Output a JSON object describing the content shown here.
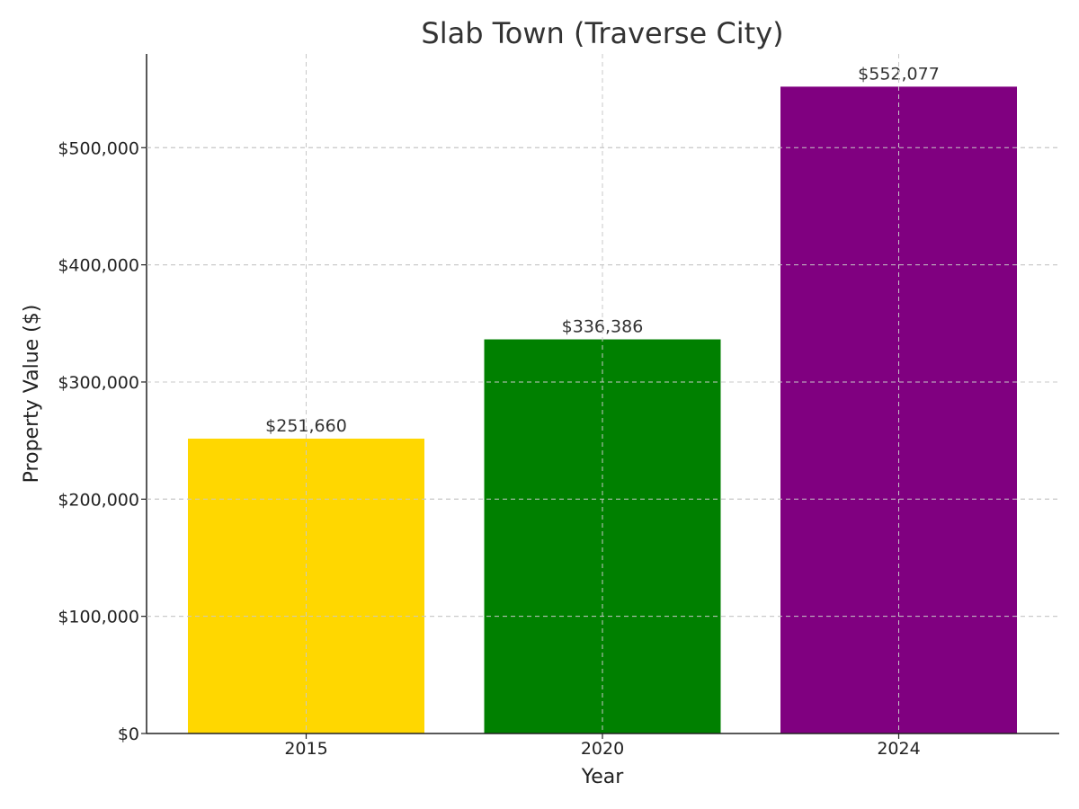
{
  "chart_data": {
    "type": "bar",
    "title": "Slab Town (Traverse City)",
    "xlabel": "Year",
    "ylabel": "Property Value ($)",
    "categories": [
      "2015",
      "2020",
      "2024"
    ],
    "values": [
      251660,
      336386,
      552077
    ],
    "value_labels": [
      "$251,660",
      "$336,386",
      "$552,077"
    ],
    "colors": [
      "#FFD700",
      "#008000",
      "#800080"
    ],
    "ylim": [
      0,
      580000
    ],
    "yticks": [
      0,
      100000,
      200000,
      300000,
      400000,
      500000
    ],
    "ytick_labels": [
      "$0",
      "$100,000",
      "$200,000",
      "$300,000",
      "$400,000",
      "$500,000"
    ],
    "grid": true
  }
}
